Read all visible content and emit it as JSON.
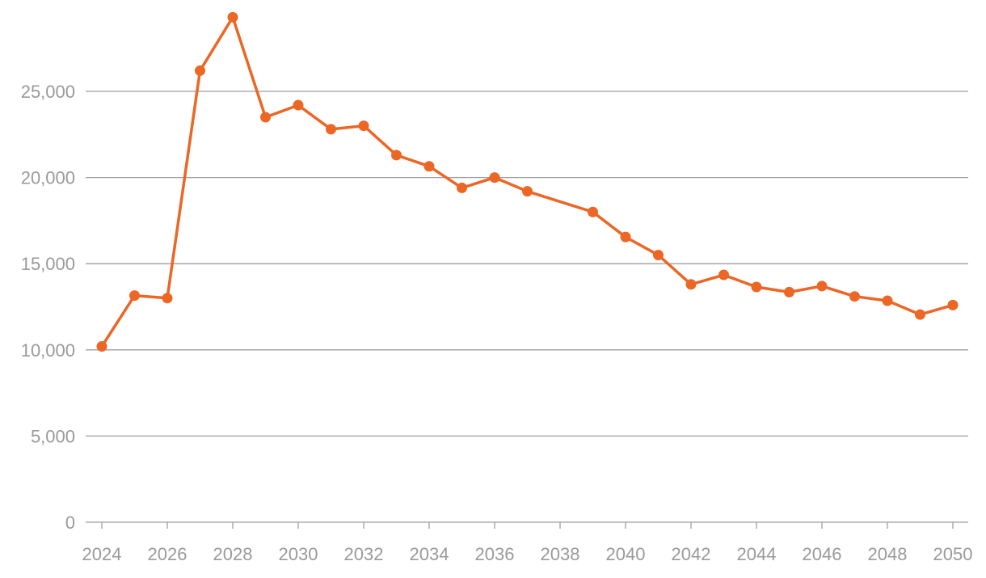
{
  "chart_data": {
    "type": "line",
    "title": "",
    "xlabel": "",
    "ylabel": "",
    "x": [
      2024,
      2025,
      2026,
      2027,
      2028,
      2029,
      2030,
      2031,
      2032,
      2033,
      2034,
      2035,
      2036,
      2037,
      2039,
      2040,
      2041,
      2042,
      2043,
      2044,
      2045,
      2046,
      2047,
      2048,
      2049,
      2050
    ],
    "series": [
      {
        "values": [
          10200,
          13150,
          13000,
          26200,
          29300,
          23500,
          24200,
          22800,
          23000,
          21300,
          20650,
          19400,
          20000,
          19200,
          18000,
          16550,
          15500,
          13800,
          14350,
          13650,
          13350,
          13700,
          13100,
          12850,
          12050,
          12600
        ]
      }
    ],
    "xticks": [
      "2024",
      "2026",
      "2028",
      "2030",
      "2032",
      "2034",
      "2036",
      "2038",
      "2040",
      "2042",
      "2044",
      "2046",
      "2048",
      "2050"
    ],
    "yticks": [
      "0",
      "5,000",
      "10,000",
      "15,000",
      "20,000",
      "25,000"
    ],
    "xlim": [
      2024,
      2050
    ],
    "ylim": [
      0,
      30000
    ],
    "grid": "horizontal",
    "legend": "none",
    "colors": {
      "line": "#EC6625",
      "grid": "#9e9e9e",
      "tick_text": "#9a9a9a"
    }
  }
}
